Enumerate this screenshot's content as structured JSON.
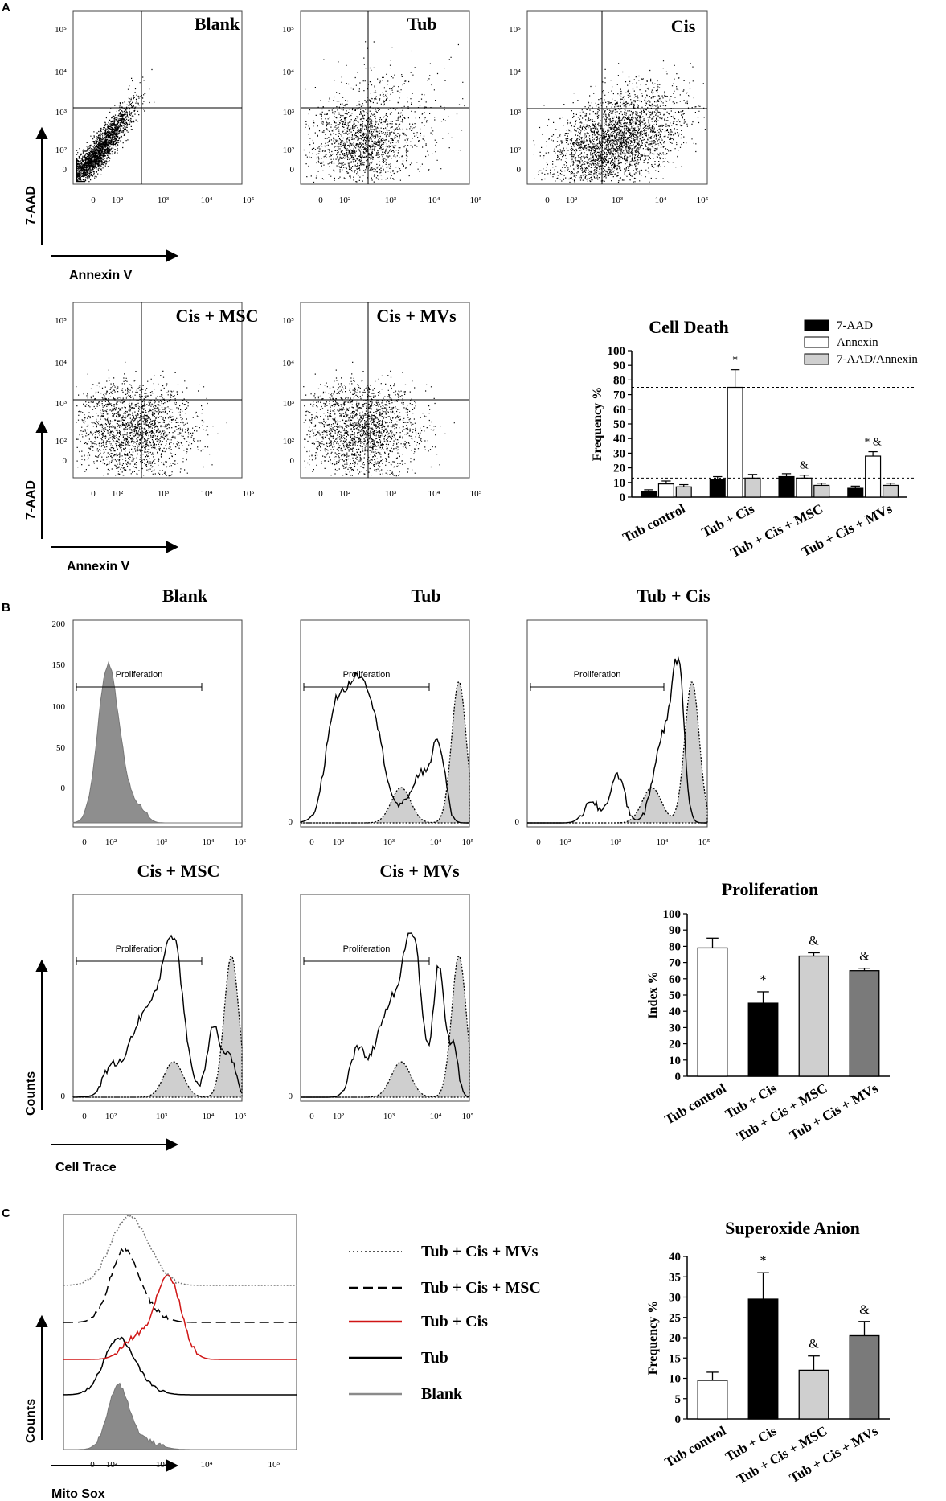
{
  "panels": {
    "a": "A",
    "b": "B",
    "c": "C"
  },
  "axes": {
    "y_7aad": "7-AAD",
    "x_annexin": "Annexin V",
    "y_counts": "Counts",
    "x_celltrace": "Cell Trace",
    "x_mitosox": "Mito Sox"
  },
  "ticks": {
    "log": [
      "0",
      "10²",
      "10³",
      "10⁴",
      "10⁵"
    ],
    "log_long": [
      "0",
      "10²",
      "10³",
      "10⁴",
      "10⁵"
    ],
    "counts": [
      "200",
      "150",
      "100",
      "50",
      "0"
    ]
  },
  "dotplots": [
    {
      "title": "Blank"
    },
    {
      "title": "Tub"
    },
    {
      "title": "Cis"
    },
    {
      "title": "Cis + MSC"
    },
    {
      "title": "Cis + MVs"
    }
  ],
  "histograms": [
    {
      "title": "Blank",
      "gate": "Proliferation"
    },
    {
      "title": "Tub",
      "gate": "Proliferation"
    },
    {
      "title": "Tub + Cis",
      "gate": "Proliferation"
    },
    {
      "title": "Cis + MSC",
      "gate": "Proliferation"
    },
    {
      "title": "Cis + MVs",
      "gate": "Proliferation"
    }
  ],
  "mitosox_legend": [
    "Tub + Cis + MVs",
    "Tub + Cis + MSC",
    "Tub + Cis",
    "Tub",
    "Blank"
  ],
  "legend_colors": {
    "mvs": "#555555",
    "msc": "#000000",
    "cis": "#d01515",
    "tub": "#000000",
    "blank": "#8a8a8a"
  },
  "chart_data": [
    {
      "type": "bar",
      "title": "Cell Death",
      "ylabel": "Frequency %",
      "ylim": [
        0,
        100
      ],
      "yticks": [
        "0",
        "10",
        "20",
        "30",
        "40",
        "50",
        "60",
        "70",
        "80",
        "90",
        "100"
      ],
      "categories": [
        "Tub control",
        "Tub + Cis",
        "Tub + Cis + MSC",
        "Tub + Cis + MVs"
      ],
      "series": [
        {
          "name": "7-AAD",
          "values": [
            4,
            12,
            14,
            6
          ],
          "errors": [
            1,
            2,
            2,
            1.5
          ],
          "color": "#000000"
        },
        {
          "name": "Annexin",
          "values": [
            9,
            75,
            13,
            28
          ],
          "errors": [
            2,
            12,
            2,
            3
          ],
          "color": "#ffffff"
        },
        {
          "name": "7-AAD/Annexin",
          "values": [
            7,
            13,
            8,
            8
          ],
          "errors": [
            1.5,
            2.5,
            1.5,
            1.5
          ],
          "color": "#cfcfcf"
        }
      ],
      "reference_lines": [
        75,
        13
      ],
      "annotations": [
        {
          "text": "*",
          "category": "Tub + Cis"
        },
        {
          "text": "&",
          "category": "Tub + Cis + MSC"
        },
        {
          "text": "* &",
          "category": "Tub + Cis + MVs"
        }
      ]
    },
    {
      "type": "bar",
      "title": "Proliferation",
      "ylabel": "Index %",
      "ylim": [
        0,
        100
      ],
      "yticks": [
        "0",
        "10",
        "20",
        "30",
        "40",
        "50",
        "60",
        "70",
        "80",
        "90",
        "100"
      ],
      "categories": [
        "Tub control",
        "Tub + Cis",
        "Tub + Cis + MSC",
        "Tub + Cis + MVs"
      ],
      "values": [
        79,
        45,
        74,
        65
      ],
      "errors": [
        6,
        7,
        2,
        1.5
      ],
      "colors": [
        "#ffffff",
        "#000000",
        "#cfcfcf",
        "#7a7a7a"
      ],
      "annotations": [
        "",
        "*",
        "&",
        "&"
      ]
    },
    {
      "type": "bar",
      "title": "Superoxide Anion",
      "ylabel": "Frequency %",
      "ylim": [
        0,
        40
      ],
      "yticks": [
        "0",
        "5",
        "10",
        "15",
        "20",
        "25",
        "30",
        "35",
        "40"
      ],
      "categories": [
        "Tub control",
        "Tub + Cis",
        "Tub + Cis + MSC",
        "Tub + Cis + MVs"
      ],
      "values": [
        9.5,
        29.5,
        12,
        20.5
      ],
      "errors": [
        2,
        6.5,
        3.5,
        3.5
      ],
      "colors": [
        "#ffffff",
        "#000000",
        "#cfcfcf",
        "#7a7a7a"
      ],
      "annotations": [
        "",
        "*",
        "&",
        "&"
      ]
    }
  ]
}
